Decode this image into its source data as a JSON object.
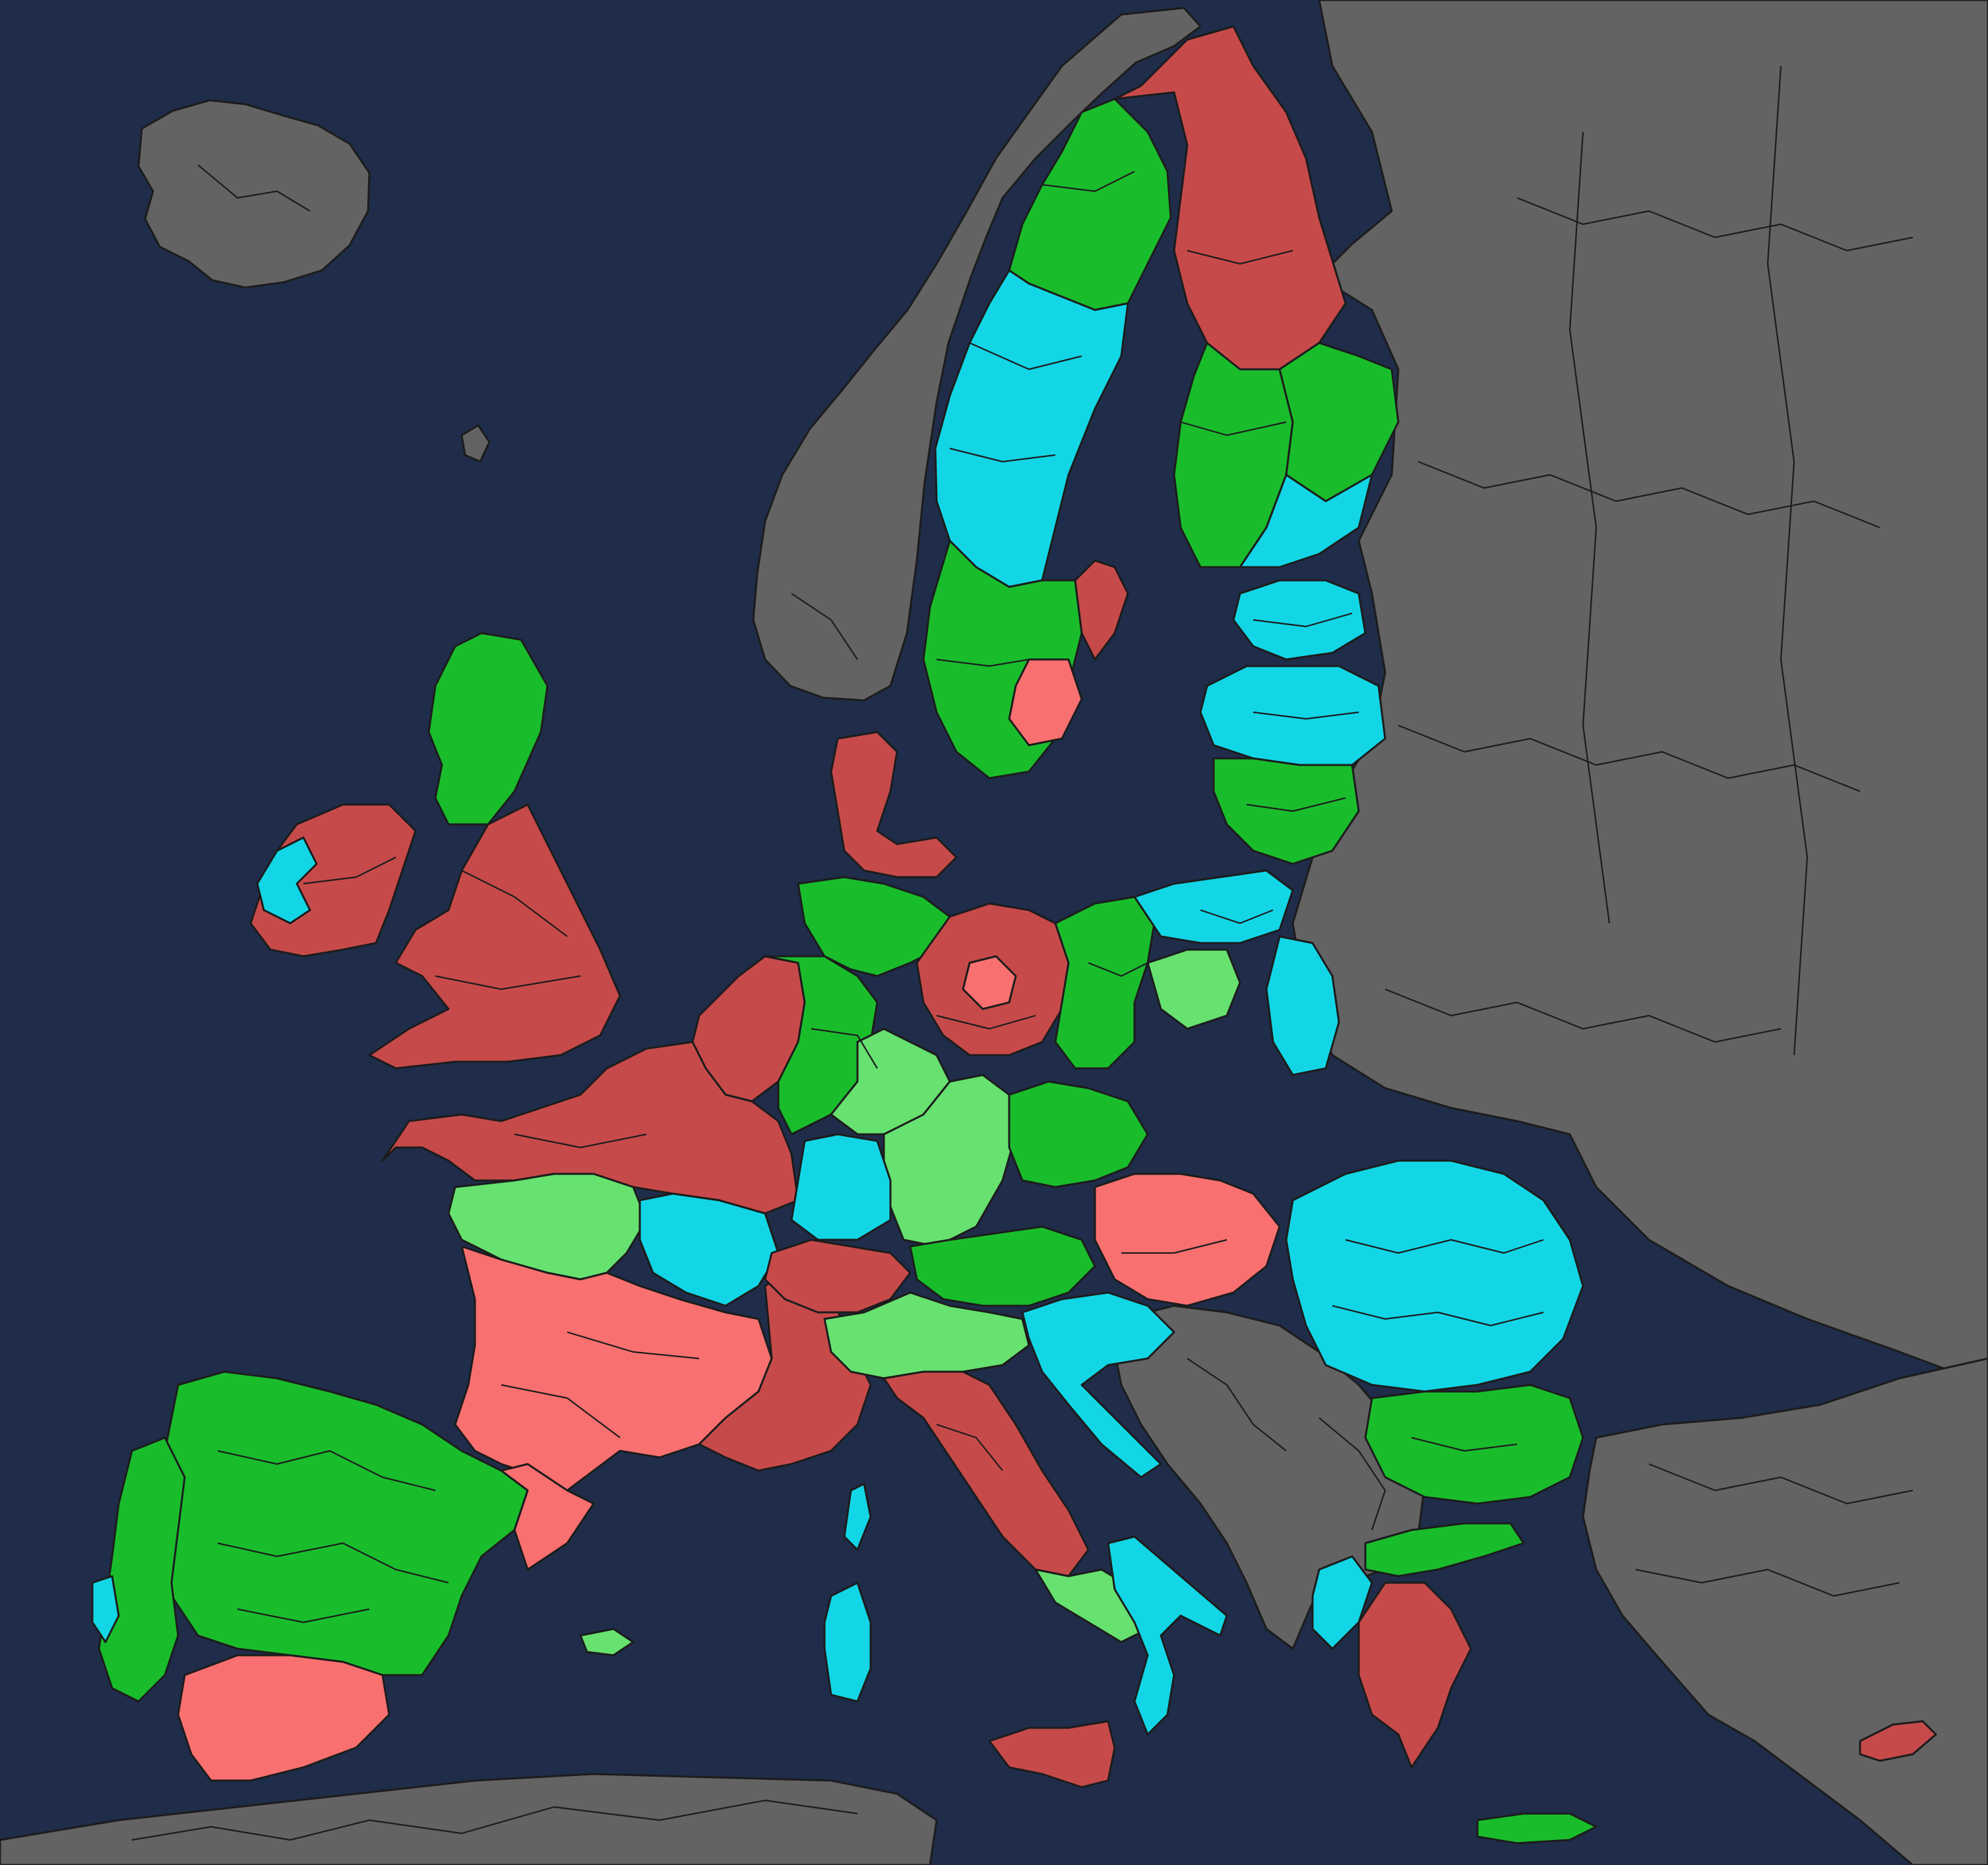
{
  "map": {
    "colors": {
      "sea": "#1f2d4a",
      "outside": "#636363",
      "border": "#1c1c1c",
      "dark_red": "#c74a4a",
      "light_red": "#f97070",
      "dark_green": "#19bd2c",
      "light_green": "#67e170",
      "cyan": "#12d6e6"
    },
    "category_order": [
      "dark_green",
      "light_green",
      "cyan",
      "light_red",
      "dark_red",
      "outside"
    ],
    "regions": [
      {
        "name": "iceland",
        "cat": "outside"
      },
      {
        "name": "norway",
        "cat": "outside"
      },
      {
        "name": "russia-belarus-ukraine",
        "cat": "outside"
      },
      {
        "name": "turkey",
        "cat": "outside"
      },
      {
        "name": "western-balkans",
        "cat": "outside"
      },
      {
        "name": "north-africa",
        "cat": "outside"
      },
      {
        "name": "svalbard-faroe-islands",
        "cat": "outside"
      },
      {
        "name": "sweden-north",
        "cat": "dark_green"
      },
      {
        "name": "sweden-central",
        "cat": "cyan"
      },
      {
        "name": "sweden-south",
        "cat": "dark_green"
      },
      {
        "name": "sweden-stockholm",
        "cat": "dark_red"
      },
      {
        "name": "sweden-southeast",
        "cat": "light_red"
      },
      {
        "name": "finland-lapland",
        "cat": "dark_red"
      },
      {
        "name": "finland-east",
        "cat": "dark_green"
      },
      {
        "name": "finland-west",
        "cat": "dark_green"
      },
      {
        "name": "finland-southeast",
        "cat": "cyan"
      },
      {
        "name": "estonia",
        "cat": "cyan"
      },
      {
        "name": "latvia",
        "cat": "cyan"
      },
      {
        "name": "lithuania",
        "cat": "dark_green"
      },
      {
        "name": "scotland",
        "cat": "dark_green"
      },
      {
        "name": "england-wales",
        "cat": "dark_red"
      },
      {
        "name": "ireland",
        "cat": "dark_red"
      },
      {
        "name": "ireland-west",
        "cat": "cyan"
      },
      {
        "name": "denmark",
        "cat": "dark_red"
      },
      {
        "name": "benelux",
        "cat": "dark_red"
      },
      {
        "name": "france-north",
        "cat": "dark_red"
      },
      {
        "name": "france-west",
        "cat": "light_green"
      },
      {
        "name": "france-centre",
        "cat": "cyan"
      },
      {
        "name": "france-south",
        "cat": "light_red"
      },
      {
        "name": "france-southeast",
        "cat": "dark_red"
      },
      {
        "name": "germany-north",
        "cat": "dark_green"
      },
      {
        "name": "germany-west",
        "cat": "dark_green"
      },
      {
        "name": "germany-east",
        "cat": "dark_red"
      },
      {
        "name": "germany-berlin",
        "cat": "light_red"
      },
      {
        "name": "germany-central",
        "cat": "light_green"
      },
      {
        "name": "germany-bavaria",
        "cat": "light_green"
      },
      {
        "name": "germany-badenwurttemberg",
        "cat": "cyan"
      },
      {
        "name": "switzerland",
        "cat": "dark_red"
      },
      {
        "name": "austria",
        "cat": "dark_green"
      },
      {
        "name": "czechia",
        "cat": "dark_green"
      },
      {
        "name": "poland-west",
        "cat": "dark_green"
      },
      {
        "name": "poland-north",
        "cat": "cyan"
      },
      {
        "name": "poland-east",
        "cat": "cyan"
      },
      {
        "name": "poland-central",
        "cat": "light_green"
      },
      {
        "name": "slovakia-hungary",
        "cat": "light_red"
      },
      {
        "name": "slovenia-croatia",
        "cat": "cyan"
      },
      {
        "name": "romania",
        "cat": "cyan"
      },
      {
        "name": "bulgaria",
        "cat": "dark_green"
      },
      {
        "name": "greece-north",
        "cat": "dark_green"
      },
      {
        "name": "greece-west",
        "cat": "cyan"
      },
      {
        "name": "greece-south",
        "cat": "dark_red"
      },
      {
        "name": "crete",
        "cat": "dark_green"
      },
      {
        "name": "cyprus",
        "cat": "dark_red"
      },
      {
        "name": "italy-north",
        "cat": "light_green"
      },
      {
        "name": "italy-central",
        "cat": "dark_red"
      },
      {
        "name": "italy-south",
        "cat": "light_green"
      },
      {
        "name": "italy-calabria-puglia",
        "cat": "cyan"
      },
      {
        "name": "sicily",
        "cat": "dark_red"
      },
      {
        "name": "corsica-sardinia",
        "cat": "cyan"
      },
      {
        "name": "spain-north",
        "cat": "dark_green"
      },
      {
        "name": "spain-andalusia",
        "cat": "light_red"
      },
      {
        "name": "spain-catalonia",
        "cat": "light_red"
      },
      {
        "name": "portugal",
        "cat": "dark_green"
      },
      {
        "name": "portugal-coast",
        "cat": "cyan"
      },
      {
        "name": "balearic-islands",
        "cat": "light_green"
      }
    ]
  }
}
